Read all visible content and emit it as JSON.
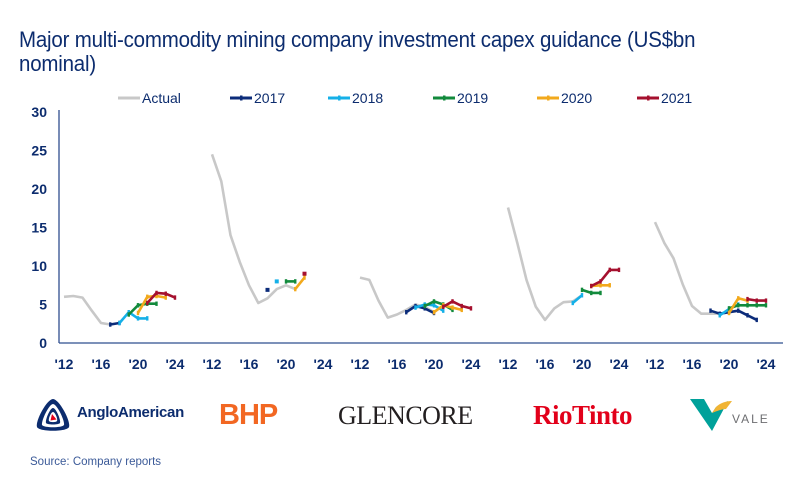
{
  "title": "Major multi-commodity mining company investment capex guidance (US$bn nominal)",
  "source": "Source: Company reports",
  "logos": {
    "anglo": "AngloAmerican",
    "bhp": "BHP",
    "glencore": "GLENCORE",
    "riotinto": "RioTinto",
    "vale": "VALE"
  },
  "colors": {
    "Actual": "#c8c8c8",
    "2017": "#0c2c7a",
    "2018": "#15b0e8",
    "2019": "#128a3c",
    "2020": "#f2a91c",
    "2021": "#a5102e",
    "axis": "#2f4f8f",
    "text": "#0c2c6e"
  },
  "chart_data": {
    "type": "line",
    "title": "Major multi-commodity mining company investment capex guidance (US$bn nominal)",
    "ylabel": "US$bn nominal",
    "xlabel": "",
    "ylim": [
      0,
      30
    ],
    "yticks": [
      "0",
      "5",
      "10",
      "15",
      "20",
      "25",
      "30"
    ],
    "xticks": [
      "'12",
      "'16",
      "'20",
      "'24"
    ],
    "xtick_years": [
      2012,
      2016,
      2020,
      2024
    ],
    "grid": false,
    "legend": [
      "Actual",
      "2017",
      "2018",
      "2019",
      "2020",
      "2021"
    ],
    "legend_position": "top",
    "panels": [
      {
        "company": "Anglo American",
        "series": [
          {
            "name": "Actual",
            "x": [
              2012,
              2013,
              2014,
              2015,
              2016,
              2017
            ],
            "y": [
              6.0,
              6.1,
              5.9,
              4.2,
              2.6,
              2.4
            ]
          },
          {
            "name": "2017",
            "x": [
              2017,
              2018
            ],
            "y": [
              2.4,
              2.6
            ]
          },
          {
            "name": "2018",
            "x": [
              2018,
              2019,
              2020,
              2021
            ],
            "y": [
              2.6,
              4.0,
              3.2,
              3.2
            ]
          },
          {
            "name": "2019",
            "x": [
              2019,
              2020,
              2021,
              2022
            ],
            "y": [
              3.7,
              4.9,
              5.1,
              5.1
            ]
          },
          {
            "name": "2020",
            "x": [
              2020,
              2021,
              2022,
              2023
            ],
            "y": [
              3.9,
              6.0,
              6.1,
              5.9
            ]
          },
          {
            "name": "2021",
            "x": [
              2021,
              2022,
              2023,
              2024
            ],
            "y": [
              5.2,
              6.5,
              6.4,
              5.9
            ]
          }
        ]
      },
      {
        "company": "BHP",
        "series": [
          {
            "name": "Actual",
            "x": [
              2012,
              2013,
              2014,
              2015,
              2016,
              2017,
              2018,
              2019,
              2020,
              2021
            ],
            "y": [
              24.5,
              21.0,
              14.0,
              10.5,
              7.5,
              5.2,
              5.8,
              7.0,
              7.5,
              7.0
            ]
          },
          {
            "name": "2017",
            "x": [
              2018
            ],
            "y": [
              6.9
            ]
          },
          {
            "name": "2018",
            "x": [
              2019
            ],
            "y": [
              8.0
            ]
          },
          {
            "name": "2019",
            "x": [
              2020,
              2021
            ],
            "y": [
              8.0,
              8.0
            ]
          },
          {
            "name": "2020",
            "x": [
              2021,
              2022
            ],
            "y": [
              7.0,
              8.5
            ]
          },
          {
            "name": "2021",
            "x": [
              2022
            ],
            "y": [
              9.0
            ]
          }
        ]
      },
      {
        "company": "Glencore",
        "series": [
          {
            "name": "Actual",
            "x": [
              2012,
              2013,
              2014,
              2015,
              2016,
              2017,
              2018,
              2019,
              2020
            ],
            "y": [
              8.5,
              8.2,
              5.5,
              3.3,
              3.7,
              4.3,
              5.0,
              4.7,
              4.0
            ]
          },
          {
            "name": "2017",
            "x": [
              2017,
              2018,
              2019,
              2020
            ],
            "y": [
              4.0,
              4.8,
              4.5,
              3.9
            ]
          },
          {
            "name": "2018",
            "x": [
              2018,
              2019,
              2020,
              2021
            ],
            "y": [
              4.6,
              5.0,
              4.9,
              4.2
            ]
          },
          {
            "name": "2019",
            "x": [
              2019,
              2020,
              2021,
              2022
            ],
            "y": [
              4.8,
              5.4,
              5.0,
              4.3
            ]
          },
          {
            "name": "2020",
            "x": [
              2020,
              2021,
              2022,
              2023
            ],
            "y": [
              4.0,
              4.9,
              4.6,
              4.3
            ]
          },
          {
            "name": "2021",
            "x": [
              2021,
              2022,
              2023,
              2024
            ],
            "y": [
              4.7,
              5.4,
              4.8,
              4.5
            ]
          }
        ]
      },
      {
        "company": "Rio Tinto",
        "series": [
          {
            "name": "Actual",
            "x": [
              2012,
              2013,
              2014,
              2015,
              2016,
              2017,
              2018,
              2019,
              2020
            ],
            "y": [
              17.6,
              13.0,
              8.2,
              4.7,
              3.0,
              4.5,
              5.3,
              5.4,
              6.2
            ]
          },
          {
            "name": "2018",
            "x": [
              2019,
              2020
            ],
            "y": [
              5.2,
              6.2
            ]
          },
          {
            "name": "2019",
            "x": [
              2020,
              2021,
              2022
            ],
            "y": [
              6.9,
              6.5,
              6.5
            ]
          },
          {
            "name": "2020",
            "x": [
              2021,
              2022,
              2023
            ],
            "y": [
              7.4,
              7.5,
              7.5
            ]
          },
          {
            "name": "2021",
            "x": [
              2021,
              2022,
              2023,
              2024
            ],
            "y": [
              7.4,
              8.0,
              9.5,
              9.5
            ]
          }
        ]
      },
      {
        "company": "Vale",
        "series": [
          {
            "name": "Actual",
            "x": [
              2012,
              2013,
              2014,
              2015,
              2016,
              2017,
              2018,
              2019
            ],
            "y": [
              15.7,
              13.0,
              11.0,
              7.6,
              4.8,
              3.8,
              3.8,
              3.8
            ]
          },
          {
            "name": "2017",
            "x": [
              2018,
              2019,
              2020,
              2021,
              2022,
              2023
            ],
            "y": [
              4.2,
              3.8,
              4.0,
              4.2,
              3.6,
              3.0
            ]
          },
          {
            "name": "2018",
            "x": [
              2019,
              2020,
              2021
            ],
            "y": [
              3.6,
              4.4,
              5.0
            ]
          },
          {
            "name": "2019",
            "x": [
              2020,
              2021,
              2022,
              2023,
              2024
            ],
            "y": [
              4.5,
              4.9,
              4.9,
              4.9,
              4.9
            ]
          },
          {
            "name": "2020",
            "x": [
              2020,
              2021,
              2022
            ],
            "y": [
              3.9,
              5.8,
              5.5
            ]
          },
          {
            "name": "2021",
            "x": [
              2022,
              2023,
              2024
            ],
            "y": [
              5.7,
              5.5,
              5.5
            ]
          }
        ]
      }
    ]
  }
}
